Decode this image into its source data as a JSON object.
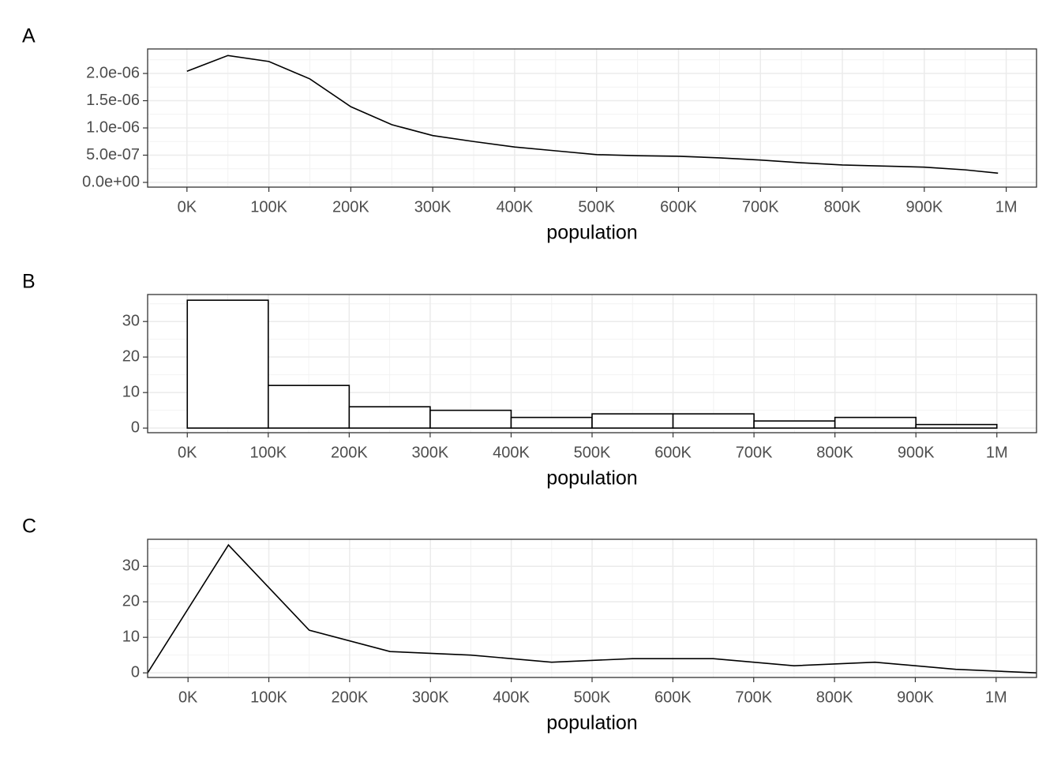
{
  "chart_data": [
    {
      "type": "line",
      "label": "A",
      "xlabel": "population",
      "color": "#000000",
      "grid": true,
      "x": [
        0,
        50000,
        100000,
        150000,
        200000,
        250000,
        300000,
        350000,
        400000,
        450000,
        500000,
        550000,
        600000,
        650000,
        700000,
        750000,
        800000,
        850000,
        900000,
        950000,
        990000
      ],
      "values": [
        2.04e-06,
        2.33e-06,
        2.22e-06,
        1.9e-06,
        1.39e-06,
        1.06e-06,
        8.6e-07,
        7.5e-07,
        6.5e-07,
        5.8e-07,
        5.1e-07,
        4.9e-07,
        4.8e-07,
        4.5e-07,
        4.1e-07,
        3.6e-07,
        3.2e-07,
        3e-07,
        2.8e-07,
        2.3e-07,
        1.7e-07
      ],
      "xlim": [
        -48000,
        1037000
      ],
      "xticks": [
        {
          "value": 0,
          "label": "0K"
        },
        {
          "value": 100000,
          "label": "100K"
        },
        {
          "value": 200000,
          "label": "200K"
        },
        {
          "value": 300000,
          "label": "300K"
        },
        {
          "value": 400000,
          "label": "400K"
        },
        {
          "value": 500000,
          "label": "500K"
        },
        {
          "value": 600000,
          "label": "600K"
        },
        {
          "value": 700000,
          "label": "700K"
        },
        {
          "value": 800000,
          "label": "800K"
        },
        {
          "value": 900000,
          "label": "900K"
        },
        {
          "value": 1000000,
          "label": "1M"
        }
      ],
      "ylim": [
        -8.7e-08,
        2.45e-06
      ],
      "yticks": [
        {
          "value": 0,
          "label": "0.0e+00"
        },
        {
          "value": 5e-07,
          "label": "5.0e-07"
        },
        {
          "value": 1e-06,
          "label": "1.0e-06"
        },
        {
          "value": 1.5e-06,
          "label": "1.5e-06"
        },
        {
          "value": 2e-06,
          "label": "2.0e-06"
        }
      ]
    },
    {
      "type": "histogram",
      "label": "B",
      "xlabel": "population",
      "color": "#000000",
      "grid": true,
      "bins": [
        0,
        100000,
        200000,
        300000,
        400000,
        500000,
        600000,
        700000,
        800000,
        900000,
        1000000
      ],
      "values": [
        36,
        12,
        6,
        5,
        3,
        4,
        4,
        2,
        3,
        1
      ],
      "xlim": [
        -49000,
        1049000
      ],
      "xticks": [
        {
          "value": 0,
          "label": "0K"
        },
        {
          "value": 100000,
          "label": "100K"
        },
        {
          "value": 200000,
          "label": "200K"
        },
        {
          "value": 300000,
          "label": "300K"
        },
        {
          "value": 400000,
          "label": "400K"
        },
        {
          "value": 500000,
          "label": "500K"
        },
        {
          "value": 600000,
          "label": "600K"
        },
        {
          "value": 700000,
          "label": "700K"
        },
        {
          "value": 800000,
          "label": "800K"
        },
        {
          "value": 900000,
          "label": "900K"
        },
        {
          "value": 1000000,
          "label": "1M"
        }
      ],
      "ylim": [
        -1.3,
        37.6
      ],
      "yticks": [
        0,
        10,
        20,
        30
      ]
    },
    {
      "type": "line",
      "label": "C",
      "xlabel": "population",
      "color": "#000000",
      "grid": true,
      "x": [
        -50000,
        50000,
        150000,
        250000,
        350000,
        450000,
        550000,
        650000,
        750000,
        850000,
        950000,
        1050000
      ],
      "values": [
        0,
        36,
        12,
        6,
        5,
        3,
        4,
        4,
        2,
        3,
        1,
        0
      ],
      "xlim": [
        -50000,
        1050000
      ],
      "xticks": [
        {
          "value": 0,
          "label": "0K"
        },
        {
          "value": 100000,
          "label": "100K"
        },
        {
          "value": 200000,
          "label": "200K"
        },
        {
          "value": 300000,
          "label": "300K"
        },
        {
          "value": 400000,
          "label": "400K"
        },
        {
          "value": 500000,
          "label": "500K"
        },
        {
          "value": 600000,
          "label": "600K"
        },
        {
          "value": 700000,
          "label": "700K"
        },
        {
          "value": 800000,
          "label": "800K"
        },
        {
          "value": 900000,
          "label": "900K"
        },
        {
          "value": 1000000,
          "label": "1M"
        }
      ],
      "ylim": [
        -1.3,
        37.6
      ],
      "yticks": [
        0,
        10,
        20,
        30
      ]
    }
  ]
}
